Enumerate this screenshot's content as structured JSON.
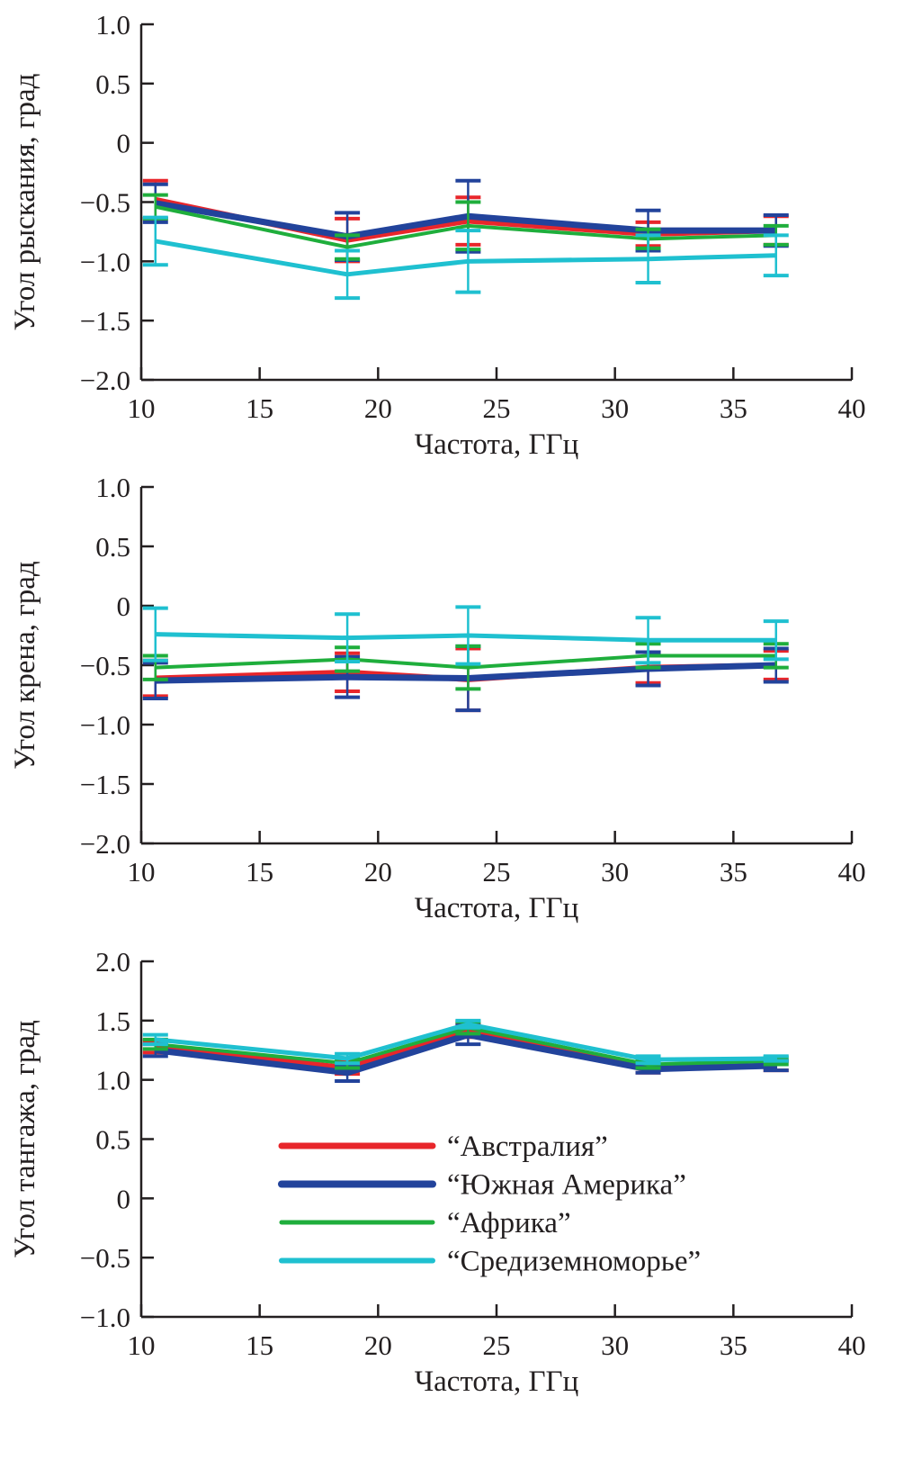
{
  "chart_data": [
    {
      "type": "line",
      "xlabel": "Частота, ГГц",
      "ylabel": "Угол рыскания, град",
      "xlim": [
        10,
        40
      ],
      "ylim": [
        -2.0,
        1.0
      ],
      "xticks": [
        "10",
        "15",
        "20",
        "25",
        "30",
        "35",
        "40"
      ],
      "yticks": [
        "1.0",
        "0.5",
        "0",
        "−0.5",
        "−1.0",
        "−1.5",
        "−2.0"
      ],
      "x": [
        10.6,
        18.7,
        23.8,
        31.4,
        36.8
      ],
      "series": [
        {
          "name": "“Австралия”",
          "color": "#e8262b",
          "values": [
            -0.48,
            -0.82,
            -0.66,
            -0.77,
            -0.74
          ],
          "err": [
            0.16,
            0.18,
            0.2,
            0.1,
            0.12
          ]
        },
        {
          "name": "“Южная Америка”",
          "color": "#22439b",
          "values": [
            -0.51,
            -0.79,
            -0.62,
            -0.74,
            -0.74
          ],
          "err": [
            0.16,
            0.2,
            0.3,
            0.17,
            0.13
          ]
        },
        {
          "name": "“Африка”",
          "color": "#1fae3c",
          "values": [
            -0.54,
            -0.88,
            -0.7,
            -0.81,
            -0.78
          ],
          "err": [
            0.1,
            0.1,
            0.2,
            0.08,
            0.08
          ]
        },
        {
          "name": "“Средиземноморье”",
          "color": "#1fc0d0",
          "values": [
            -0.83,
            -1.11,
            -1.0,
            -0.98,
            -0.95
          ],
          "err": [
            0.2,
            0.2,
            0.26,
            0.2,
            0.17
          ]
        }
      ]
    },
    {
      "type": "line",
      "xlabel": "Частота, ГГц",
      "ylabel": "Угол крена, град",
      "xlim": [
        10,
        40
      ],
      "ylim": [
        -2.0,
        1.0
      ],
      "xticks": [
        "10",
        "15",
        "20",
        "25",
        "30",
        "35",
        "40"
      ],
      "yticks": [
        "1.0",
        "0.5",
        "0",
        "−0.5",
        "−1.0",
        "−1.5",
        "−2.0"
      ],
      "x": [
        10.6,
        18.7,
        23.8,
        31.4,
        36.8
      ],
      "series": [
        {
          "name": "“Австралия”",
          "color": "#e8262b",
          "values": [
            -0.61,
            -0.56,
            -0.62,
            -0.52,
            -0.5
          ],
          "err": [
            0.15,
            0.16,
            0.26,
            0.13,
            0.12
          ]
        },
        {
          "name": "“Южная Америка”",
          "color": "#22439b",
          "values": [
            -0.63,
            -0.6,
            -0.61,
            -0.53,
            -0.5
          ],
          "err": [
            0.15,
            0.17,
            0.27,
            0.14,
            0.14
          ]
        },
        {
          "name": "“Африка”",
          "color": "#1fae3c",
          "values": [
            -0.52,
            -0.45,
            -0.52,
            -0.42,
            -0.42
          ],
          "err": [
            0.1,
            0.1,
            0.18,
            0.1,
            0.1
          ]
        },
        {
          "name": "“Средиземноморье”",
          "color": "#1fc0d0",
          "values": [
            -0.24,
            -0.27,
            -0.25,
            -0.29,
            -0.29
          ],
          "err": [
            0.22,
            0.2,
            0.24,
            0.19,
            0.16
          ]
        }
      ]
    },
    {
      "type": "line",
      "xlabel": "Частота, ГГц",
      "ylabel": "Угол тангажа, град",
      "xlim": [
        10,
        40
      ],
      "ylim": [
        -1.0,
        2.0
      ],
      "xticks": [
        "10",
        "15",
        "20",
        "25",
        "30",
        "35",
        "40"
      ],
      "yticks": [
        "2.0",
        "1.5",
        "1.0",
        "0.5",
        "0",
        "−0.5",
        "−1.0"
      ],
      "x": [
        10.6,
        18.7,
        23.8,
        31.4,
        36.8
      ],
      "legend": "center",
      "series": [
        {
          "name": "“Австралия”",
          "color": "#e8262b",
          "values": [
            1.28,
            1.1,
            1.42,
            1.1,
            1.12
          ],
          "err": [
            0.05,
            0.05,
            0.06,
            0.04,
            0.04
          ]
        },
        {
          "name": "“Южная Америка”",
          "color": "#22439b",
          "values": [
            1.25,
            1.06,
            1.38,
            1.09,
            1.12
          ],
          "err": [
            0.05,
            0.07,
            0.08,
            0.03,
            0.04
          ]
        },
        {
          "name": "“Африка”",
          "color": "#1fae3c",
          "values": [
            1.3,
            1.14,
            1.44,
            1.13,
            1.16
          ],
          "err": [
            0.04,
            0.04,
            0.05,
            0.03,
            0.03
          ]
        },
        {
          "name": "“Средиземноморье”",
          "color": "#1fc0d0",
          "values": [
            1.34,
            1.18,
            1.47,
            1.17,
            1.18
          ],
          "err": [
            0.04,
            0.04,
            0.03,
            0.03,
            0.02
          ]
        }
      ]
    }
  ]
}
